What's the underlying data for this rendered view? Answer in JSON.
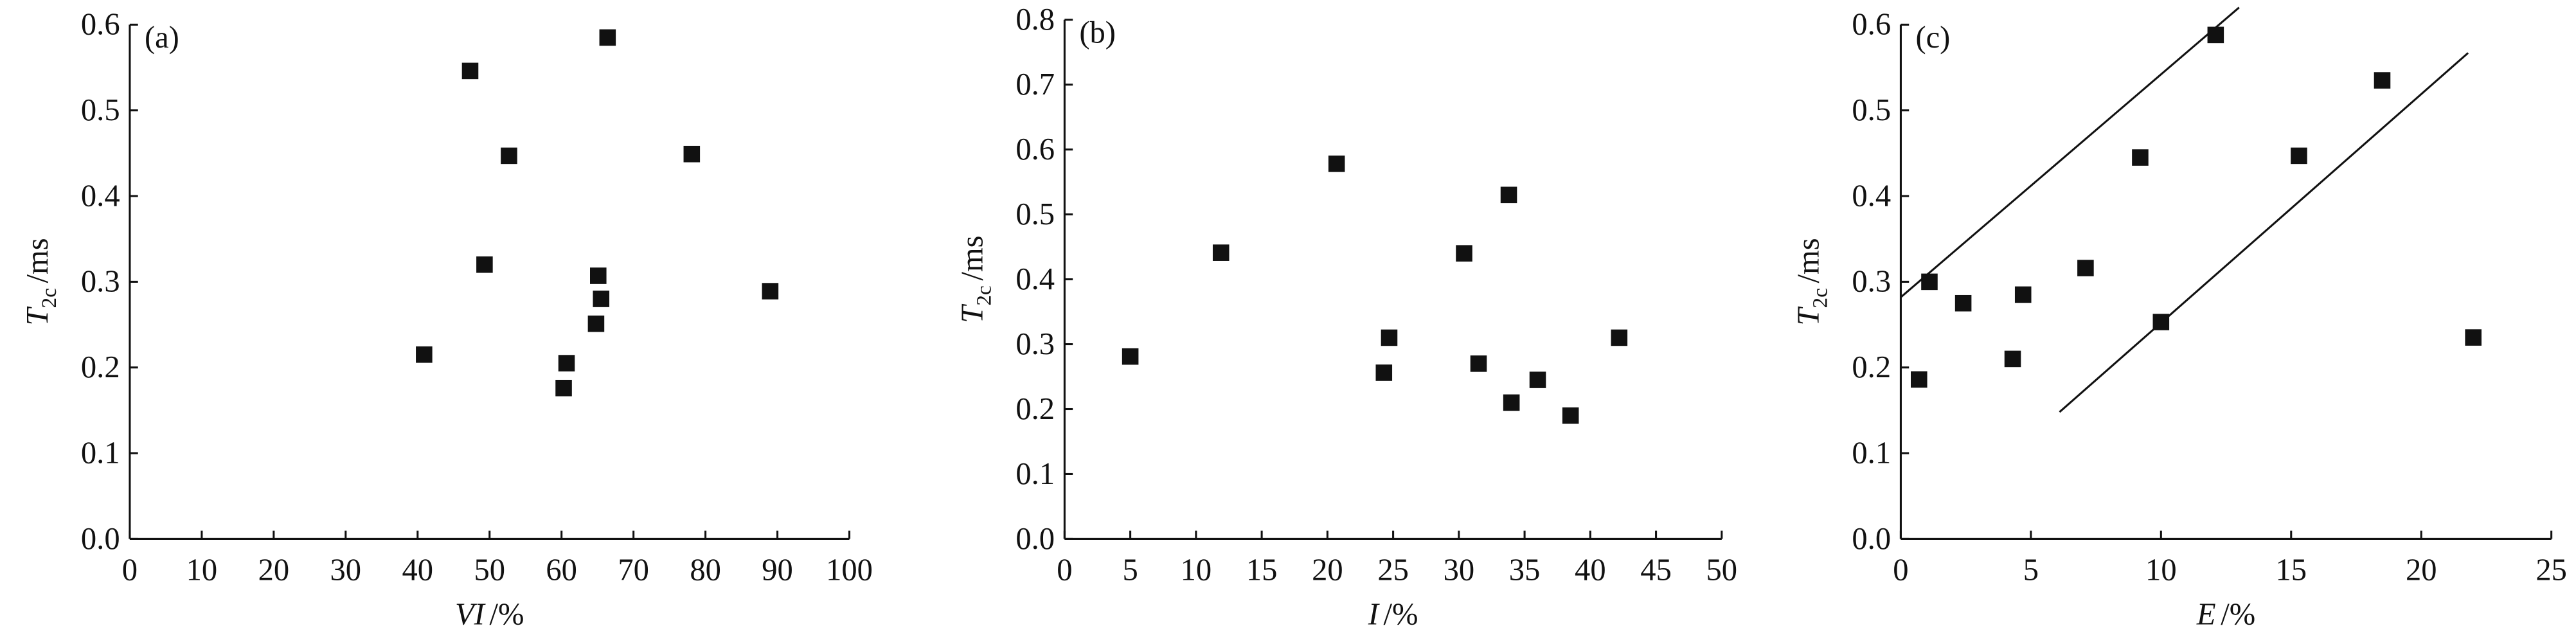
{
  "chart_data": [
    {
      "type": "scatter",
      "label": "(a)",
      "xlabel_var": "VI",
      "xlabel_unit": "/%",
      "ylabel_var": "T",
      "ylabel_sub": "2c",
      "ylabel_unit": "/ms",
      "color": "#111111",
      "x": [
        40.9,
        47.3,
        52.7,
        49.3,
        66.4,
        78.1,
        89.0,
        65.1,
        65.5,
        64.8,
        60.7,
        60.3
      ],
      "y": [
        0.215,
        0.546,
        0.447,
        0.32,
        0.585,
        0.449,
        0.289,
        0.307,
        0.28,
        0.251,
        0.205,
        0.176
      ],
      "xlim": [
        0,
        100
      ],
      "ylim": [
        0,
        0.6
      ],
      "xticks": [
        0,
        10,
        20,
        30,
        40,
        50,
        60,
        70,
        80,
        90,
        100
      ],
      "yticks": [
        {
          "value": 0,
          "label": "0.0"
        },
        0.1,
        0.2,
        0.3,
        0.4,
        0.5,
        0.6
      ]
    },
    {
      "type": "scatter",
      "label": "(b)",
      "xlabel_var": "I",
      "xlabel_unit": "/%",
      "ylabel_var": "T",
      "ylabel_sub": "2c",
      "ylabel_unit": "/ms",
      "color": "#111111",
      "x": [
        5.0,
        11.9,
        20.7,
        24.7,
        24.3,
        30.4,
        33.8,
        31.5,
        34.0,
        36.0,
        38.5,
        42.2
      ],
      "y": [
        0.281,
        0.441,
        0.578,
        0.31,
        0.256,
        0.44,
        0.53,
        0.27,
        0.21,
        0.245,
        0.19,
        0.31
      ],
      "xlim": [
        0,
        50
      ],
      "ylim": [
        0,
        0.8
      ],
      "xticks": [
        0,
        5,
        10,
        15,
        20,
        25,
        30,
        35,
        40,
        45,
        50
      ],
      "yticks": [
        {
          "value": 0,
          "label": "0.0"
        },
        0.1,
        0.2,
        0.3,
        0.4,
        0.5,
        0.6,
        0.7,
        0.8
      ]
    },
    {
      "type": "scatter",
      "label": "(c)",
      "xlabel_var": "E",
      "xlabel_unit": "/%",
      "ylabel_var": "T",
      "ylabel_sub": "2c",
      "ylabel_unit": "/ms",
      "color": "#111111",
      "x": [
        0.7,
        1.1,
        2.4,
        4.3,
        4.7,
        7.1,
        9.2,
        10.0,
        12.1,
        15.3,
        18.5,
        22.0
      ],
      "y": [
        0.186,
        0.3,
        0.275,
        0.21,
        0.285,
        0.316,
        0.445,
        0.253,
        0.588,
        0.447,
        0.535,
        0.235
      ],
      "xlim": [
        0,
        25
      ],
      "ylim": [
        0,
        0.6
      ],
      "xticks": [
        0,
        5,
        10,
        15,
        20,
        25
      ],
      "yticks": [
        {
          "value": 0,
          "label": "0.0"
        },
        0.1,
        0.2,
        0.3,
        0.4,
        0.5,
        0.6
      ],
      "lines": [
        {
          "x": [
            0,
            13
          ],
          "y": [
            0.282,
            0.62
          ]
        },
        {
          "x": [
            6.1,
            21.8
          ],
          "y": [
            0.148,
            0.567
          ]
        }
      ]
    }
  ]
}
